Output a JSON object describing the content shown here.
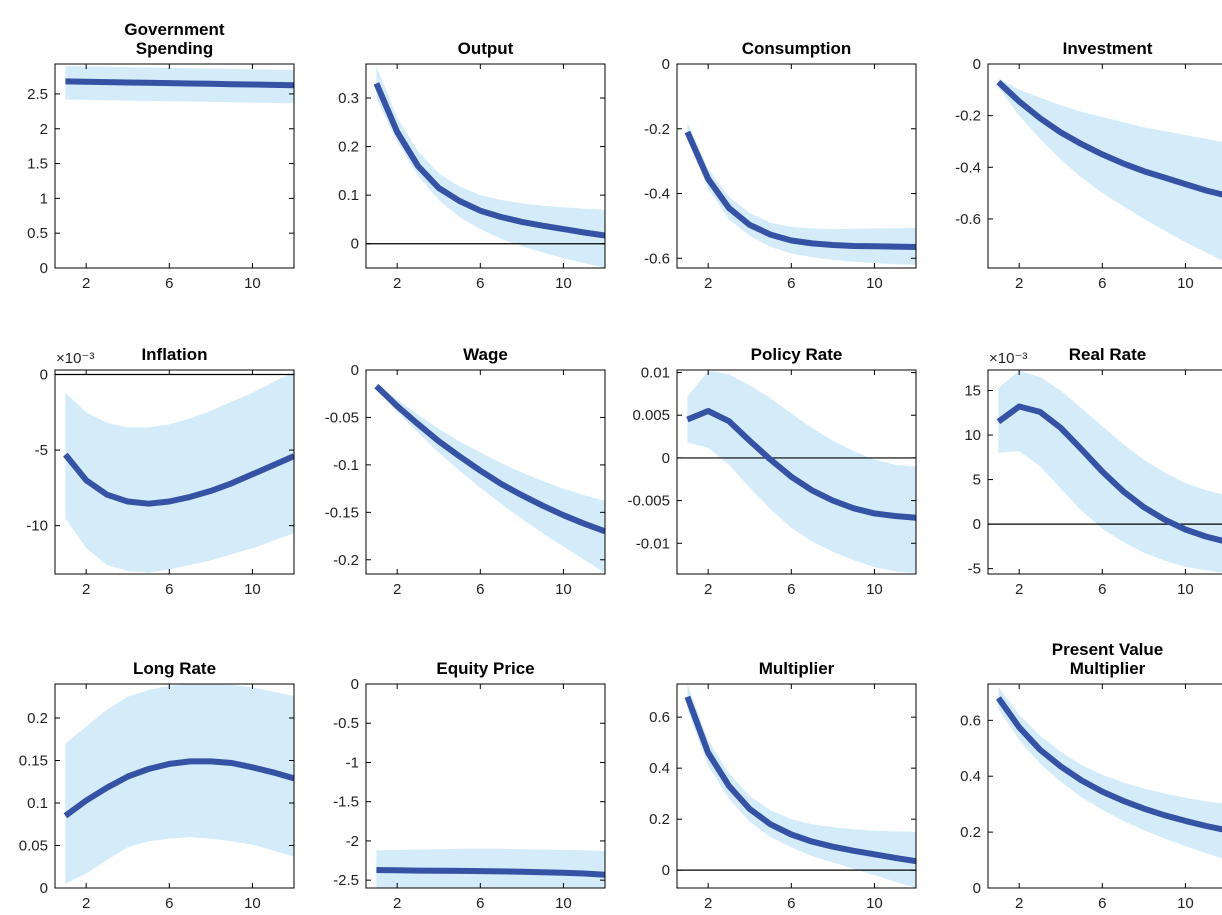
{
  "figure": {
    "colors": {
      "line": "#3652a5",
      "band": "#d4ecf9",
      "zero_line": "#000000",
      "axis": "#000000"
    }
  },
  "chart_data": [
    {
      "type": "line",
      "title": [
        "Government",
        "Spending"
      ],
      "x": [
        1,
        2,
        3,
        4,
        5,
        6,
        7,
        8,
        9,
        10,
        11,
        12
      ],
      "y": [
        2.68,
        2.675,
        2.67,
        2.665,
        2.66,
        2.655,
        2.65,
        2.645,
        2.64,
        2.635,
        2.63,
        2.625
      ],
      "band_lower": [
        2.42,
        2.415,
        2.41,
        2.405,
        2.4,
        2.395,
        2.39,
        2.385,
        2.38,
        2.375,
        2.37,
        2.365
      ],
      "band_upper": [
        2.9,
        2.895,
        2.89,
        2.885,
        2.88,
        2.875,
        2.87,
        2.865,
        2.86,
        2.855,
        2.85,
        2.845
      ],
      "xlim": [
        0.5,
        12
      ],
      "ylim": [
        0,
        2.93
      ],
      "xticks": [
        2,
        6,
        10
      ],
      "xtick_labels": [
        "2",
        "6",
        "10"
      ],
      "yticks": [
        0,
        0.5,
        1,
        1.5,
        2,
        2.5
      ],
      "ytick_labels": [
        "0",
        "0.5",
        "1",
        "1.5",
        "2",
        "2.5"
      ],
      "zero_line": false,
      "multiplier": ""
    },
    {
      "type": "line",
      "title": [
        "Output"
      ],
      "x": [
        1,
        2,
        3,
        4,
        5,
        6,
        7,
        8,
        9,
        10,
        11,
        12
      ],
      "y": [
        0.33,
        0.23,
        0.16,
        0.115,
        0.088,
        0.068,
        0.055,
        0.045,
        0.037,
        0.03,
        0.023,
        0.017
      ],
      "band_lower": [
        0.3,
        0.21,
        0.14,
        0.09,
        0.055,
        0.03,
        0.01,
        -0.005,
        -0.018,
        -0.03,
        -0.04,
        -0.05
      ],
      "band_upper": [
        0.365,
        0.26,
        0.19,
        0.145,
        0.118,
        0.1,
        0.09,
        0.083,
        0.078,
        0.075,
        0.072,
        0.07
      ],
      "xlim": [
        0.5,
        12
      ],
      "ylim": [
        -0.05,
        0.37
      ],
      "xticks": [
        2,
        6,
        10
      ],
      "xtick_labels": [
        "2",
        "6",
        "10"
      ],
      "yticks": [
        0,
        0.1,
        0.2,
        0.3
      ],
      "ytick_labels": [
        "0",
        "0.1",
        "0.2",
        "0.3"
      ],
      "zero_line": true,
      "multiplier": ""
    },
    {
      "type": "line",
      "title": [
        "Consumption"
      ],
      "x": [
        1,
        2,
        3,
        4,
        5,
        6,
        7,
        8,
        9,
        10,
        11,
        12
      ],
      "y": [
        -0.21,
        -0.355,
        -0.445,
        -0.497,
        -0.527,
        -0.545,
        -0.554,
        -0.559,
        -0.562,
        -0.563,
        -0.564,
        -0.565
      ],
      "band_lower": [
        -0.23,
        -0.385,
        -0.48,
        -0.53,
        -0.565,
        -0.585,
        -0.597,
        -0.605,
        -0.611,
        -0.615,
        -0.618,
        -0.62
      ],
      "band_upper": [
        -0.18,
        -0.325,
        -0.41,
        -0.46,
        -0.49,
        -0.503,
        -0.508,
        -0.51,
        -0.509,
        -0.508,
        -0.507,
        -0.506
      ],
      "xlim": [
        0.5,
        12
      ],
      "ylim": [
        -0.63,
        0
      ],
      "xticks": [
        2,
        6,
        10
      ],
      "xtick_labels": [
        "2",
        "6",
        "10"
      ],
      "yticks": [
        -0.6,
        -0.4,
        -0.2,
        0
      ],
      "ytick_labels": [
        "-0.6",
        "-0.4",
        "-0.2",
        "0"
      ],
      "zero_line": false,
      "multiplier": ""
    },
    {
      "type": "line",
      "title": [
        "Investment"
      ],
      "x": [
        1,
        2,
        3,
        4,
        5,
        6,
        7,
        8,
        9,
        10,
        11,
        12
      ],
      "y": [
        -0.07,
        -0.145,
        -0.21,
        -0.265,
        -0.31,
        -0.35,
        -0.385,
        -0.415,
        -0.44,
        -0.465,
        -0.49,
        -0.51
      ],
      "band_lower": [
        -0.09,
        -0.2,
        -0.29,
        -0.37,
        -0.44,
        -0.5,
        -0.55,
        -0.6,
        -0.645,
        -0.69,
        -0.73,
        -0.77
      ],
      "band_upper": [
        -0.055,
        -0.1,
        -0.13,
        -0.16,
        -0.185,
        -0.205,
        -0.225,
        -0.245,
        -0.26,
        -0.275,
        -0.29,
        -0.305
      ],
      "xlim": [
        0.5,
        12
      ],
      "ylim": [
        -0.79,
        0
      ],
      "xticks": [
        2,
        6,
        10
      ],
      "xtick_labels": [
        "2",
        "6",
        "10"
      ],
      "yticks": [
        -0.6,
        -0.4,
        -0.2,
        0
      ],
      "ytick_labels": [
        "-0.6",
        "-0.4",
        "-0.2",
        "0"
      ],
      "zero_line": false,
      "multiplier": ""
    },
    {
      "type": "line",
      "title": [
        "Inflation"
      ],
      "x": [
        1,
        2,
        3,
        4,
        5,
        6,
        7,
        8,
        9,
        10,
        11,
        12
      ],
      "y": [
        -5.3,
        -7.0,
        -7.95,
        -8.4,
        -8.55,
        -8.4,
        -8.1,
        -7.7,
        -7.2,
        -6.6,
        -6.0,
        -5.4
      ],
      "band_lower": [
        -9.5,
        -11.5,
        -12.6,
        -13.0,
        -13.1,
        -12.9,
        -12.6,
        -12.3,
        -11.9,
        -11.5,
        -11.0,
        -10.5
      ],
      "band_upper": [
        -1.2,
        -2.5,
        -3.2,
        -3.5,
        -3.5,
        -3.3,
        -2.9,
        -2.4,
        -1.8,
        -1.2,
        -0.5,
        0.2
      ],
      "xlim": [
        0.5,
        12
      ],
      "ylim": [
        -13.2,
        0.3
      ],
      "xticks": [
        2,
        6,
        10
      ],
      "xtick_labels": [
        "2",
        "6",
        "10"
      ],
      "yticks": [
        -10,
        -5,
        0
      ],
      "ytick_labels": [
        "-10",
        "-5",
        "0"
      ],
      "zero_line": true,
      "multiplier": "×10⁻³"
    },
    {
      "type": "line",
      "title": [
        "Wage"
      ],
      "x": [
        1,
        2,
        3,
        4,
        5,
        6,
        7,
        8,
        9,
        10,
        11,
        12
      ],
      "y": [
        -0.017,
        -0.038,
        -0.057,
        -0.075,
        -0.091,
        -0.106,
        -0.12,
        -0.132,
        -0.143,
        -0.153,
        -0.162,
        -0.17
      ],
      "band_lower": [
        -0.02,
        -0.044,
        -0.066,
        -0.087,
        -0.106,
        -0.124,
        -0.141,
        -0.157,
        -0.172,
        -0.186,
        -0.2,
        -0.214
      ],
      "band_upper": [
        -0.014,
        -0.031,
        -0.047,
        -0.062,
        -0.075,
        -0.087,
        -0.098,
        -0.108,
        -0.117,
        -0.125,
        -0.132,
        -0.138
      ],
      "xlim": [
        0.5,
        12
      ],
      "ylim": [
        -0.215,
        0
      ],
      "xticks": [
        2,
        6,
        10
      ],
      "xtick_labels": [
        "2",
        "6",
        "10"
      ],
      "yticks": [
        -0.2,
        -0.15,
        -0.1,
        -0.05,
        0
      ],
      "ytick_labels": [
        "-0.2",
        "-0.15",
        "-0.1",
        "-0.05",
        "0"
      ],
      "zero_line": false,
      "multiplier": ""
    },
    {
      "type": "line",
      "title": [
        "Policy Rate"
      ],
      "x": [
        1,
        2,
        3,
        4,
        5,
        6,
        7,
        8,
        9,
        10,
        11,
        12
      ],
      "y": [
        0.0045,
        0.0055,
        0.0043,
        0.002,
        -0.0002,
        -0.0022,
        -0.0038,
        -0.005,
        -0.0059,
        -0.0065,
        -0.0068,
        -0.007
      ],
      "band_lower": [
        0.0018,
        0.0012,
        -0.0008,
        -0.0035,
        -0.006,
        -0.0082,
        -0.0098,
        -0.011,
        -0.012,
        -0.0128,
        -0.0133,
        -0.0135
      ],
      "band_upper": [
        0.0072,
        0.0102,
        0.0098,
        0.0085,
        0.007,
        0.0052,
        0.0035,
        0.002,
        0.0008,
        -0.0002,
        -0.0008,
        -0.001
      ],
      "xlim": [
        0.5,
        12
      ],
      "ylim": [
        -0.0136,
        0.0103
      ],
      "xticks": [
        2,
        6,
        10
      ],
      "xtick_labels": [
        "2",
        "6",
        "10"
      ],
      "yticks": [
        -0.01,
        -0.005,
        0,
        0.005,
        0.01
      ],
      "ytick_labels": [
        "-0.01",
        "-0.005",
        "0",
        "0.005",
        "0.01"
      ],
      "zero_line": true,
      "multiplier": ""
    },
    {
      "type": "line",
      "title": [
        "Real Rate"
      ],
      "x": [
        1,
        2,
        3,
        4,
        5,
        6,
        7,
        8,
        9,
        10,
        11,
        12
      ],
      "y": [
        11.5,
        13.2,
        12.6,
        10.8,
        8.4,
        5.9,
        3.7,
        1.9,
        0.5,
        -0.6,
        -1.4,
        -2.0
      ],
      "band_lower": [
        8.0,
        8.2,
        6.5,
        4.0,
        1.5,
        -0.5,
        -2.0,
        -3.2,
        -4.1,
        -4.8,
        -5.2,
        -5.5
      ],
      "band_upper": [
        15.3,
        17.2,
        16.5,
        15.0,
        13.0,
        11.0,
        9.0,
        7.2,
        5.8,
        4.6,
        3.8,
        3.2
      ],
      "xlim": [
        0.5,
        12
      ],
      "ylim": [
        -5.6,
        17.3
      ],
      "xticks": [
        2,
        6,
        10
      ],
      "xtick_labels": [
        "2",
        "6",
        "10"
      ],
      "yticks": [
        -5,
        0,
        5,
        10,
        15
      ],
      "ytick_labels": [
        "-5",
        "0",
        "5",
        "10",
        "15"
      ],
      "zero_line": true,
      "multiplier": "×10⁻³"
    },
    {
      "type": "line",
      "title": [
        "Long Rate"
      ],
      "x": [
        1,
        2,
        3,
        4,
        5,
        6,
        7,
        8,
        9,
        10,
        11,
        12
      ],
      "y": [
        0.085,
        0.103,
        0.118,
        0.131,
        0.14,
        0.146,
        0.149,
        0.149,
        0.147,
        0.142,
        0.136,
        0.129
      ],
      "band_lower": [
        0.005,
        0.017,
        0.033,
        0.048,
        0.055,
        0.058,
        0.06,
        0.058,
        0.055,
        0.051,
        0.044,
        0.037
      ],
      "band_upper": [
        0.17,
        0.19,
        0.21,
        0.225,
        0.233,
        0.238,
        0.24,
        0.24,
        0.239,
        0.236,
        0.231,
        0.226
      ],
      "xlim": [
        0.5,
        12
      ],
      "ylim": [
        0,
        0.24
      ],
      "xticks": [
        2,
        6,
        10
      ],
      "xtick_labels": [
        "2",
        "6",
        "10"
      ],
      "yticks": [
        0,
        0.05,
        0.1,
        0.15,
        0.2
      ],
      "ytick_labels": [
        "0",
        "0.05",
        "0.1",
        "0.15",
        "0.2"
      ],
      "zero_line": false,
      "multiplier": ""
    },
    {
      "type": "line",
      "title": [
        "Equity Price"
      ],
      "x": [
        1,
        2,
        3,
        4,
        5,
        6,
        7,
        8,
        9,
        10,
        11,
        12
      ],
      "y": [
        -2.37,
        -2.375,
        -2.378,
        -2.38,
        -2.382,
        -2.385,
        -2.388,
        -2.392,
        -2.398,
        -2.405,
        -2.415,
        -2.43
      ],
      "band_lower": [
        -2.6,
        -2.6,
        -2.6,
        -2.6,
        -2.6,
        -2.6,
        -2.6,
        -2.6,
        -2.6,
        -2.6,
        -2.6,
        -2.6
      ],
      "band_upper": [
        -2.12,
        -2.115,
        -2.11,
        -2.105,
        -2.1,
        -2.1,
        -2.1,
        -2.105,
        -2.11,
        -2.115,
        -2.12,
        -2.13
      ],
      "xlim": [
        0.5,
        12
      ],
      "ylim": [
        -2.6,
        0
      ],
      "xticks": [
        2,
        6,
        10
      ],
      "xtick_labels": [
        "2",
        "6",
        "10"
      ],
      "yticks": [
        -2.5,
        -2,
        -1.5,
        -1,
        -0.5,
        0
      ],
      "ytick_labels": [
        "-2.5",
        "-2",
        "-1.5",
        "-1",
        "-0.5",
        "0"
      ],
      "zero_line": false,
      "multiplier": ""
    },
    {
      "type": "line",
      "title": [
        "Multiplier"
      ],
      "x": [
        1,
        2,
        3,
        4,
        5,
        6,
        7,
        8,
        9,
        10,
        11,
        12
      ],
      "y": [
        0.68,
        0.46,
        0.33,
        0.24,
        0.18,
        0.14,
        0.112,
        0.092,
        0.076,
        0.062,
        0.048,
        0.035
      ],
      "band_lower": [
        0.63,
        0.41,
        0.28,
        0.19,
        0.13,
        0.09,
        0.055,
        0.03,
        0.005,
        -0.02,
        -0.045,
        -0.07
      ],
      "band_upper": [
        0.73,
        0.51,
        0.38,
        0.29,
        0.235,
        0.2,
        0.18,
        0.168,
        0.16,
        0.155,
        0.152,
        0.15
      ],
      "xlim": [
        0.5,
        12
      ],
      "ylim": [
        -0.07,
        0.73
      ],
      "xticks": [
        2,
        6,
        10
      ],
      "xtick_labels": [
        "2",
        "6",
        "10"
      ],
      "yticks": [
        0,
        0.2,
        0.4,
        0.6
      ],
      "ytick_labels": [
        "0",
        "0.2",
        "0.4",
        "0.6"
      ],
      "zero_line": true,
      "multiplier": ""
    },
    {
      "type": "line",
      "title": [
        "Present Value",
        "Multiplier"
      ],
      "x": [
        1,
        2,
        3,
        4,
        5,
        6,
        7,
        8,
        9,
        10,
        11,
        12
      ],
      "y": [
        0.68,
        0.575,
        0.495,
        0.435,
        0.385,
        0.345,
        0.312,
        0.284,
        0.26,
        0.24,
        0.222,
        0.206
      ],
      "band_lower": [
        0.64,
        0.53,
        0.445,
        0.38,
        0.325,
        0.28,
        0.24,
        0.207,
        0.177,
        0.15,
        0.125,
        0.1
      ],
      "band_upper": [
        0.72,
        0.62,
        0.545,
        0.488,
        0.44,
        0.405,
        0.378,
        0.356,
        0.338,
        0.323,
        0.31,
        0.3
      ],
      "xlim": [
        0.5,
        12
      ],
      "ylim": [
        0,
        0.73
      ],
      "xticks": [
        2,
        6,
        10
      ],
      "xtick_labels": [
        "2",
        "6",
        "10"
      ],
      "yticks": [
        0,
        0.2,
        0.4,
        0.6
      ],
      "ytick_labels": [
        "0",
        "0.2",
        "0.4",
        "0.6"
      ],
      "zero_line": false,
      "multiplier": ""
    }
  ]
}
